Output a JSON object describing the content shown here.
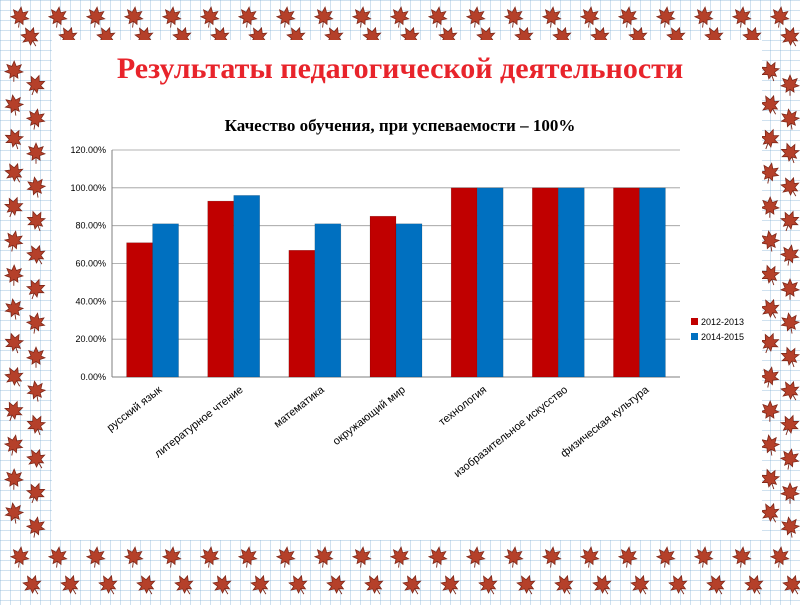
{
  "slide": {
    "title": "Результаты педагогической деятельности"
  },
  "colors": {
    "title": "#e8242b",
    "series_2012": "#c00000",
    "series_2014": "#0070c0",
    "leaf": "#b5402a"
  },
  "decor": {
    "border_icon": "maple-leaf-icon"
  },
  "chart_data": {
    "type": "bar",
    "title": "Качество обучения, при успеваемости – 100%",
    "categories": [
      "русский язык",
      "литературное чтение",
      "математика",
      "окружающий мир",
      "технология",
      "изобразительное искусство",
      "физическая культура"
    ],
    "series": [
      {
        "name": "2012-2013",
        "color": "#c00000",
        "values": [
          71,
          93,
          67,
          85,
          100,
          100,
          100
        ]
      },
      {
        "name": "2014-2015",
        "color": "#0070c0",
        "values": [
          81,
          96,
          81,
          81,
          100,
          100,
          100
        ]
      }
    ],
    "yticks": [
      "0.00%",
      "20.00%",
      "40.00%",
      "60.00%",
      "80.00%",
      "100.00%",
      "120.00%"
    ],
    "ylim": [
      0,
      120
    ],
    "grid": true,
    "legend": "right"
  }
}
